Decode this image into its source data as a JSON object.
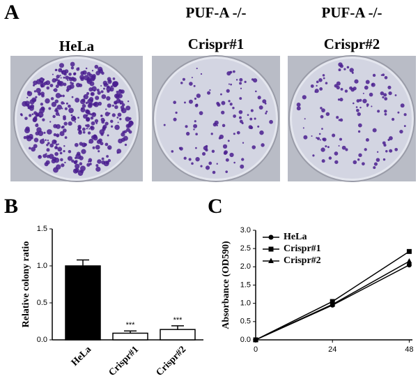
{
  "panels": {
    "a": {
      "label": "A",
      "plates": [
        {
          "title_lines": [
            "HeLa"
          ]
        },
        {
          "title_lines": [
            "PUF-A -/-",
            "Crispr#1"
          ]
        },
        {
          "title_lines": [
            "PUF-A -/-",
            "Crispr#2"
          ]
        }
      ]
    },
    "b": {
      "label": "B"
    },
    "c": {
      "label": "C"
    }
  },
  "chart_data": [
    {
      "type": "bar",
      "ylabel": "Relative colony ratio",
      "categories": [
        "HeLa",
        "Crispr#1",
        "Crispr#2"
      ],
      "values": [
        1.0,
        0.09,
        0.14
      ],
      "errors": [
        0.08,
        0.03,
        0.05
      ],
      "annotations": [
        null,
        "***",
        "***"
      ],
      "colors": [
        "#000000",
        "#ffffff",
        "#ffffff"
      ],
      "ylim": [
        0,
        1.5
      ],
      "yticks": [
        {
          "value": 0,
          "label": "0.0"
        },
        0.5,
        {
          "value": 1,
          "label": "1.0"
        },
        1.5
      ]
    },
    {
      "type": "line",
      "ylabel": "Absorbance (OD590)",
      "x": [
        0,
        24,
        48
      ],
      "xlim": [
        0,
        49
      ],
      "xticks": [
        0,
        24,
        48
      ],
      "ylim": [
        0,
        3
      ],
      "yticks": [
        {
          "value": 0,
          "label": "0.0"
        },
        0.5,
        {
          "value": 1,
          "label": "1.0"
        },
        1.5,
        {
          "value": 2,
          "label": "2.0"
        },
        2.5,
        {
          "value": 3,
          "label": "3.0"
        }
      ],
      "legend": "upper left",
      "series": [
        {
          "name": "HeLa",
          "color": "#000000",
          "marker": "circle",
          "values": [
            0,
            0.95,
            2.05
          ]
        },
        {
          "name": "Crispr#1",
          "color": "#000000",
          "marker": "square",
          "values": [
            0,
            1.05,
            2.42
          ]
        },
        {
          "name": "Crispr#2",
          "color": "#000000",
          "marker": "triangle",
          "values": [
            0,
            0.97,
            2.15
          ]
        }
      ]
    }
  ]
}
